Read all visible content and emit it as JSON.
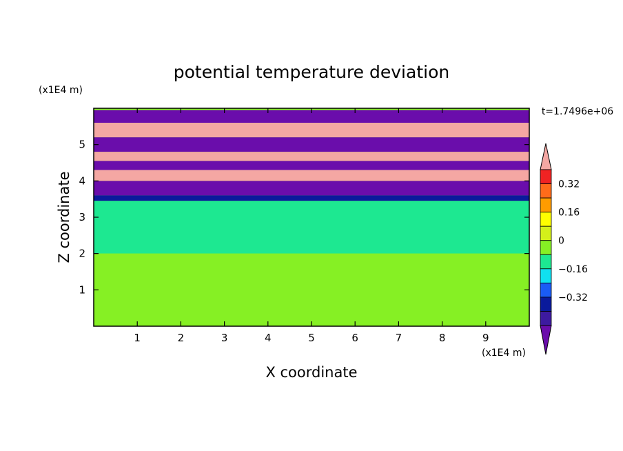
{
  "chart_data": {
    "type": "heatmap",
    "title": "potential temperature deviation",
    "xlabel": "X coordinate",
    "ylabel": "Z coordinate",
    "x_unit": "(x1E4 m)",
    "y_unit": "(x1E4 m)",
    "time_label": "t=1.7496e+06",
    "xlim": [
      0,
      10
    ],
    "ylim": [
      0,
      6
    ],
    "x_ticks": [
      "1",
      "2",
      "3",
      "4",
      "5",
      "6",
      "7",
      "8",
      "9"
    ],
    "y_ticks": [
      "1",
      "2",
      "3",
      "4",
      "5"
    ],
    "grid": false,
    "colorbar": {
      "placement": "right",
      "levels": [
        -0.48,
        -0.4,
        -0.32,
        -0.24,
        -0.16,
        -0.08,
        0,
        0.08,
        0.16,
        0.24,
        0.32,
        0.4,
        0.48
      ],
      "tick_labels": [
        "0.32",
        "0.16",
        "0",
        "−0.16",
        "−0.32"
      ],
      "tick_values": [
        0.32,
        0.16,
        0,
        -0.16,
        -0.32
      ],
      "colors": [
        "#6a0dab",
        "#3d1aa0",
        "#0a1a9c",
        "#1a5cf5",
        "#10e0f0",
        "#1de891",
        "#86f024",
        "#d4f01a",
        "#ffff00",
        "#ff9c00",
        "#ff6b1a",
        "#f02323",
        "#f4a7a3"
      ],
      "extend": "both"
    },
    "bands": [
      {
        "z": [
          5.6,
          5.95
        ],
        "value": -0.48
      },
      {
        "z": [
          5.2,
          5.6
        ],
        "value": 0.48
      },
      {
        "z": [
          4.8,
          5.2
        ],
        "value": -0.48
      },
      {
        "z": [
          4.55,
          4.8
        ],
        "value": 0.48
      },
      {
        "z": [
          4.3,
          4.55
        ],
        "value": -0.48
      },
      {
        "z": [
          4.0,
          4.3
        ],
        "value": 0.48
      },
      {
        "z": [
          3.6,
          4.0
        ],
        "value": -0.48
      },
      {
        "z": [
          3.45,
          3.6
        ],
        "value": -0.32
      },
      {
        "z": [
          2.0,
          3.45
        ],
        "value": -0.04
      },
      {
        "z": [
          0,
          2.0
        ],
        "value": 0.04
      }
    ]
  }
}
